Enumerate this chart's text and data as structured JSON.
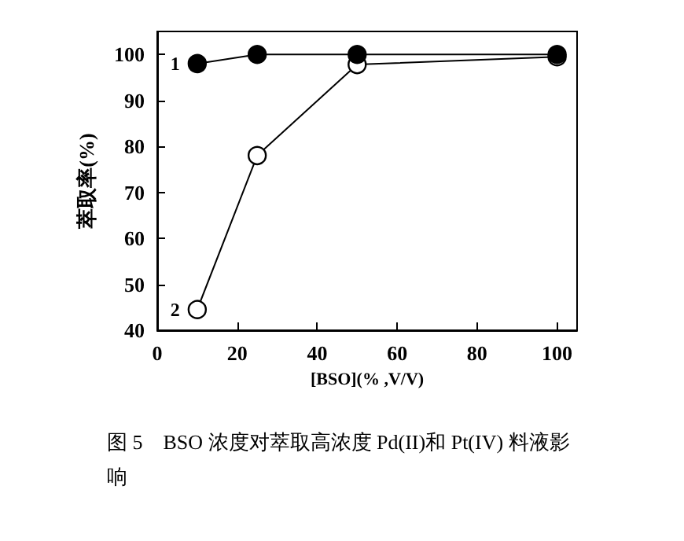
{
  "chart_data": {
    "type": "line",
    "x": [
      10,
      25,
      50,
      100
    ],
    "series": [
      {
        "name": "1",
        "color": "#000000",
        "values": [
          98,
          100,
          100,
          100
        ]
      },
      {
        "name": "2",
        "color": "#ffffff",
        "values": [
          44.5,
          78,
          97.8,
          99.5
        ]
      }
    ],
    "xlabel": "[BSO](% ,V/V)",
    "ylabel": "萃取率(%)",
    "xlim": [
      0,
      105
    ],
    "xticks": [
      0,
      20,
      40,
      60,
      80,
      100
    ],
    "ylim": [
      40,
      105
    ],
    "yticks": [
      40,
      50,
      60,
      70,
      80,
      90,
      100
    ],
    "marker": "circle",
    "line_style": "solid",
    "grid": false,
    "legend": false,
    "annotations": [
      "图 5    BSO 浓度对萃取高浓度 Pd(II)和 Pt(IV) 料液影响"
    ]
  }
}
